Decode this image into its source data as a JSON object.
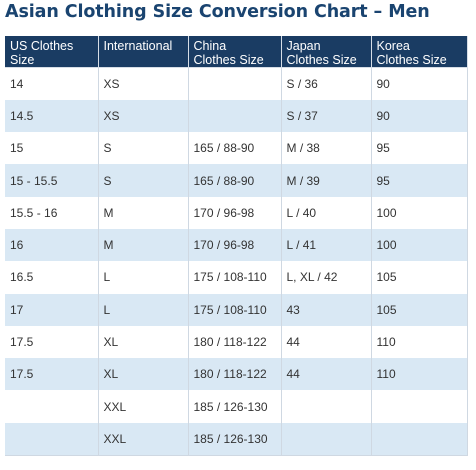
{
  "title": "Asian Clothing Size Conversion Chart – Men",
  "headers": [
    [
      "US Clothes",
      "Size"
    ],
    [
      "International",
      ""
    ],
    [
      "China",
      "Clothes Size"
    ],
    [
      "Japan",
      "Clothes Size"
    ],
    [
      "Korea",
      "Clothes Size"
    ]
  ],
  "rows": [
    [
      "14",
      "XS",
      "",
      "S / 36",
      "90"
    ],
    [
      "14.5",
      "XS",
      "",
      "S / 37",
      "90"
    ],
    [
      "15",
      "S",
      "165 / 88-90",
      "M / 38",
      "95"
    ],
    [
      "15 - 15.5",
      "S",
      "165 / 88-90",
      "M / 39",
      "95"
    ],
    [
      "15.5 - 16",
      "M",
      "170 / 96-98",
      "L / 40",
      "100"
    ],
    [
      "16",
      "M",
      "170 / 96-98",
      "L / 41",
      "100"
    ],
    [
      "16.5",
      "L",
      "175 / 108-110",
      "L, XL / 42",
      "105"
    ],
    [
      "17",
      "L",
      "175 / 108-110",
      "43",
      "105"
    ],
    [
      "17.5",
      "XL",
      "180 / 118-122",
      "44",
      "110"
    ],
    [
      "17.5",
      "XL",
      "180 / 118-122",
      "44",
      "110"
    ],
    [
      "",
      "XXL",
      "185 / 126-130",
      "",
      ""
    ],
    [
      "",
      "XXL",
      "185 / 126-130",
      "",
      ""
    ]
  ],
  "colors": {
    "title": "#1a4470",
    "header_bg": "#1a3c63",
    "header_text": "#ffffff",
    "row_alt_bg": "#d9e8f4",
    "row_bg": "#ffffff"
  }
}
